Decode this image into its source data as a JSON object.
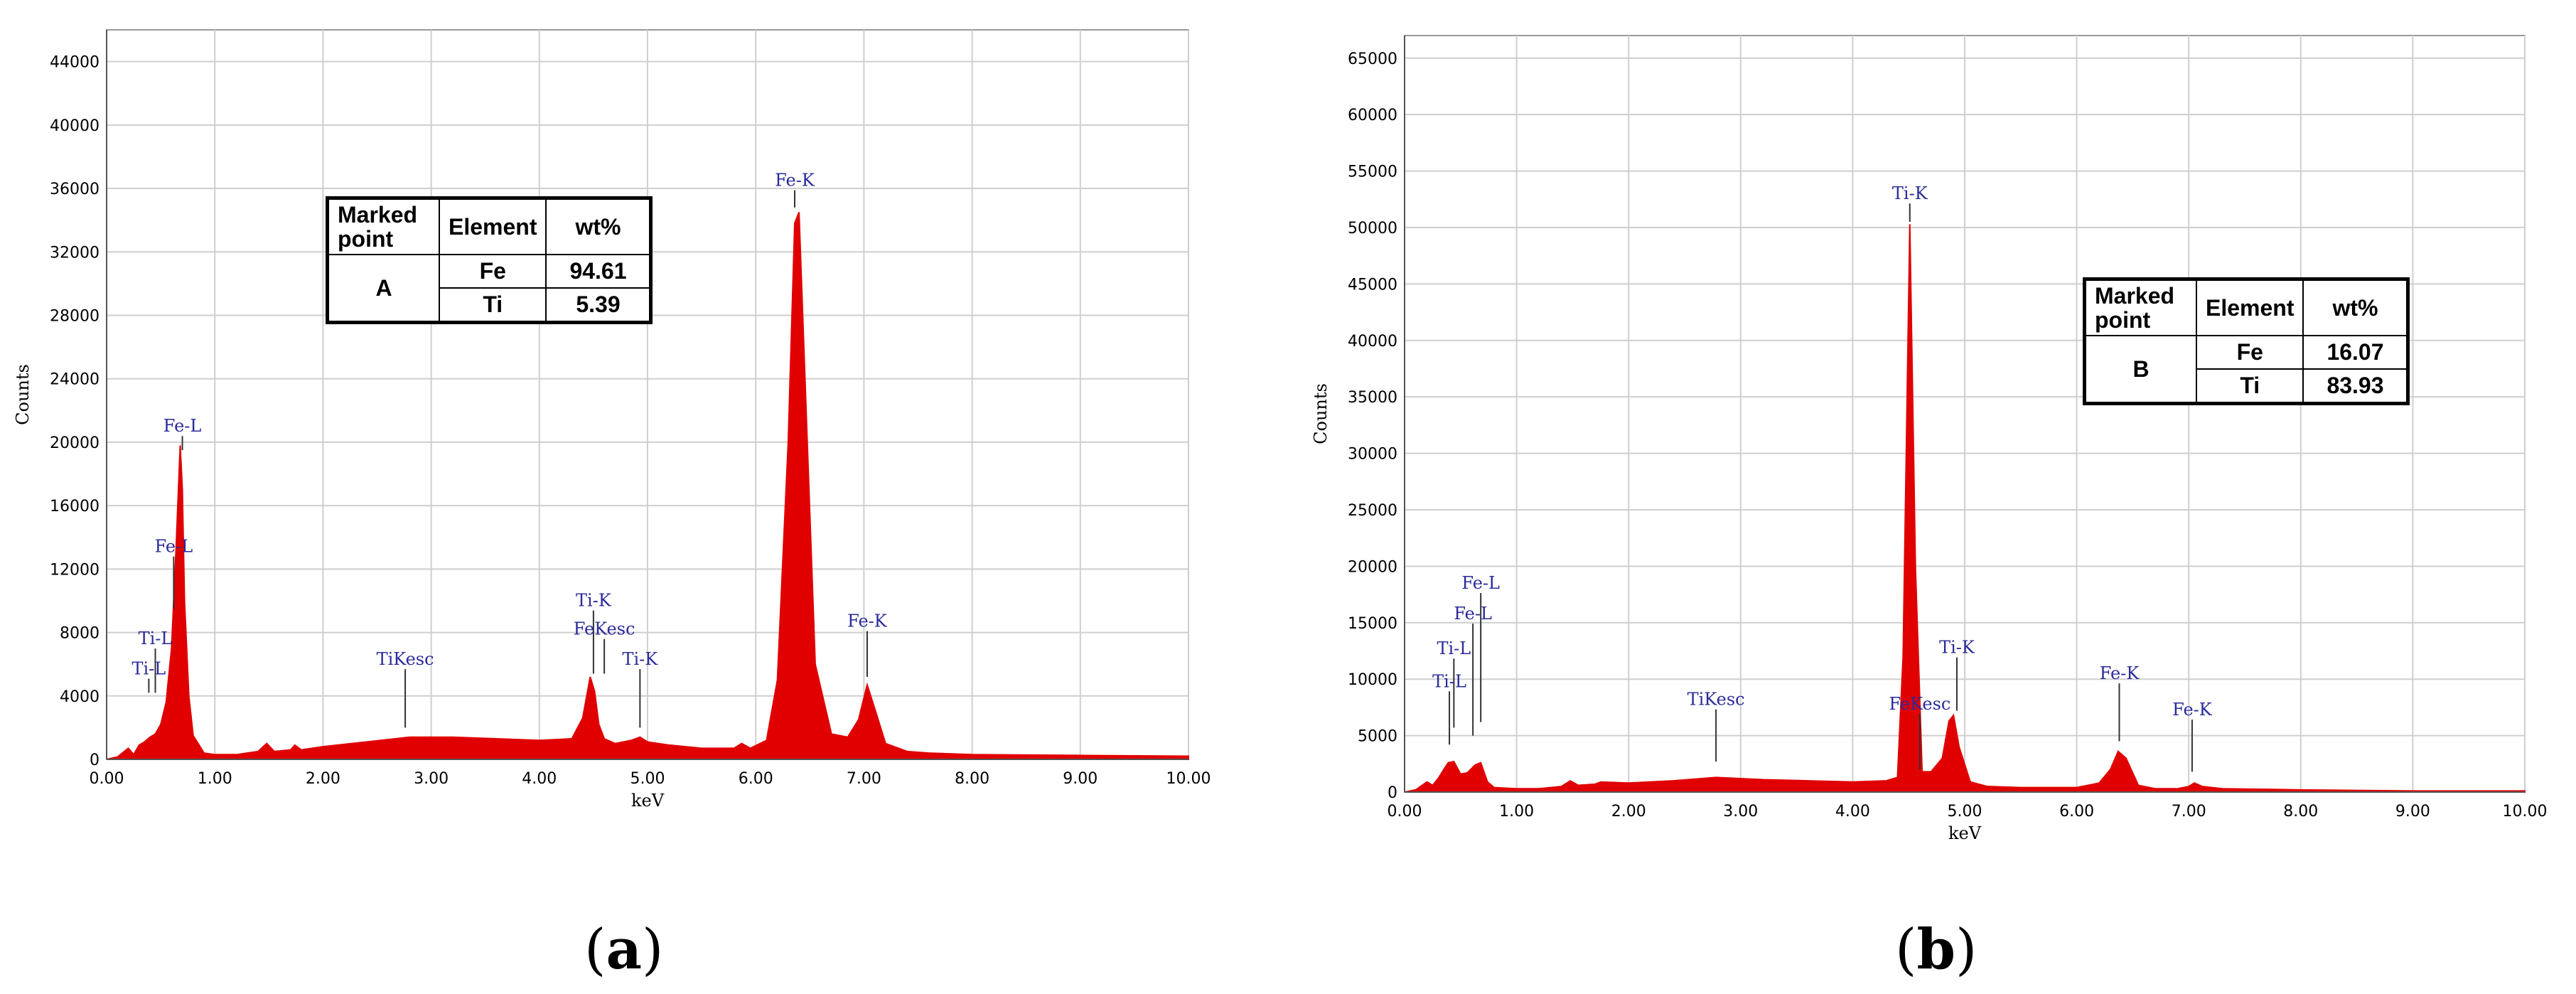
{
  "chart_data": [
    {
      "type": "area",
      "panel_label": "a",
      "xlabel": "keV",
      "ylabel": "Counts",
      "xlim": [
        0,
        10
      ],
      "ylim": [
        0,
        46000
      ],
      "x_ticks": [
        "0.00",
        "1.00",
        "2.00",
        "3.00",
        "4.00",
        "5.00",
        "6.00",
        "7.00",
        "8.00",
        "9.00",
        "10.00"
      ],
      "y_ticks": [
        "0",
        "4000",
        "8000",
        "12000",
        "16000",
        "20000",
        "24000",
        "28000",
        "32000",
        "36000",
        "40000",
        "44000"
      ],
      "grid": true,
      "series_color": "#e00000",
      "label_color": "#2a2a9a",
      "spectrum": {
        "x": [
          0.0,
          0.1,
          0.2,
          0.25,
          0.3,
          0.35,
          0.4,
          0.45,
          0.5,
          0.55,
          0.6,
          0.64,
          0.68,
          0.7,
          0.72,
          0.76,
          0.8,
          0.9,
          1.0,
          1.2,
          1.4,
          1.48,
          1.55,
          1.7,
          1.74,
          1.8,
          2.0,
          2.4,
          2.8,
          3.2,
          3.6,
          4.0,
          4.3,
          4.4,
          4.47,
          4.51,
          4.55,
          4.6,
          4.7,
          4.85,
          4.93,
          5.0,
          5.2,
          5.5,
          5.8,
          5.87,
          5.95,
          6.1,
          6.2,
          6.3,
          6.36,
          6.4,
          6.45,
          6.55,
          6.7,
          6.85,
          6.95,
          7.03,
          7.1,
          7.2,
          7.4,
          7.6,
          8.0,
          9.0,
          10.0
        ],
        "y": [
          0,
          150,
          700,
          300,
          900,
          1100,
          1400,
          1600,
          2200,
          3600,
          7000,
          13000,
          19800,
          17000,
          10000,
          4000,
          1500,
          400,
          300,
          300,
          500,
          1000,
          500,
          600,
          900,
          600,
          800,
          1100,
          1400,
          1400,
          1300,
          1200,
          1300,
          2600,
          5200,
          4300,
          2200,
          1300,
          1000,
          1200,
          1400,
          1100,
          900,
          700,
          700,
          1000,
          700,
          1200,
          5000,
          20000,
          33800,
          34500,
          25000,
          6000,
          1600,
          1400,
          2500,
          4700,
          3200,
          1000,
          500,
          400,
          300,
          250,
          200
        ]
      },
      "peak_labels": [
        {
          "text": "Fe-L",
          "x": 0.7,
          "y": 19500,
          "label_y": 20300
        },
        {
          "text": "Fe-L",
          "x": 0.62,
          "y": 9500,
          "label_y": 12700
        },
        {
          "text": "Ti-L",
          "x": 0.45,
          "y": 4200,
          "label_y": 6900
        },
        {
          "text": "Ti-L",
          "x": 0.39,
          "y": 4200,
          "label_y": 5000
        },
        {
          "text": "TiKesc",
          "x": 2.76,
          "y": 2000,
          "label_y": 5600
        },
        {
          "text": "Ti-K",
          "x": 4.5,
          "y": 5400,
          "label_y": 9300
        },
        {
          "text": "FeKesc",
          "x": 4.6,
          "y": 5400,
          "label_y": 7500
        },
        {
          "text": "Ti-K",
          "x": 4.93,
          "y": 2000,
          "label_y": 5600
        },
        {
          "text": "Fe-K",
          "x": 6.36,
          "y": 34800,
          "label_y": 35800
        },
        {
          "text": "Fe-K",
          "x": 7.03,
          "y": 5200,
          "label_y": 8000
        }
      ],
      "table": {
        "headers": [
          "Marked point",
          "Element",
          "wt%"
        ],
        "marked_point": "A",
        "rows": [
          {
            "element": "Fe",
            "wt": "94.61"
          },
          {
            "element": "Ti",
            "wt": "5.39"
          }
        ]
      }
    },
    {
      "type": "area",
      "panel_label": "b",
      "xlabel": "keV",
      "ylabel": "Counts",
      "xlim": [
        0,
        10
      ],
      "ylim": [
        0,
        67000
      ],
      "x_ticks": [
        "0.00",
        "1.00",
        "2.00",
        "3.00",
        "4.00",
        "5.00",
        "6.00",
        "7.00",
        "8.00",
        "9.00",
        "10.00"
      ],
      "y_ticks": [
        "0",
        "5000",
        "10000",
        "15000",
        "20000",
        "25000",
        "30000",
        "35000",
        "40000",
        "45000",
        "50000",
        "55000",
        "60000",
        "65000"
      ],
      "grid": true,
      "series_color": "#e00000",
      "label_color": "#2a2a9a",
      "spectrum": {
        "x": [
          0.0,
          0.1,
          0.2,
          0.25,
          0.3,
          0.35,
          0.39,
          0.44,
          0.5,
          0.56,
          0.63,
          0.68,
          0.74,
          0.8,
          1.0,
          1.2,
          1.4,
          1.48,
          1.55,
          1.7,
          1.75,
          2.0,
          2.4,
          2.78,
          3.2,
          3.6,
          4.0,
          4.3,
          4.4,
          4.45,
          4.51,
          4.56,
          4.62,
          4.7,
          4.8,
          4.86,
          4.9,
          4.95,
          5.05,
          5.2,
          5.5,
          6.0,
          6.2,
          6.3,
          6.37,
          6.44,
          6.55,
          6.7,
          6.9,
          7.0,
          7.05,
          7.12,
          7.3,
          8.0,
          9.0,
          10.0
        ],
        "y": [
          0,
          200,
          900,
          600,
          1200,
          2000,
          2600,
          2700,
          1600,
          1700,
          2400,
          2600,
          900,
          400,
          300,
          300,
          500,
          1000,
          600,
          700,
          900,
          800,
          1000,
          1300,
          1100,
          1000,
          900,
          1000,
          1300,
          12000,
          50300,
          20000,
          1800,
          1800,
          3000,
          6300,
          6800,
          4000,
          900,
          500,
          400,
          400,
          800,
          2000,
          3600,
          3000,
          600,
          300,
          300,
          500,
          800,
          500,
          300,
          200,
          100,
          100
        ]
      },
      "peak_labels": [
        {
          "text": "Fe-L",
          "x": 0.68,
          "y": 6200,
          "label_y": 17500
        },
        {
          "text": "Fe-L",
          "x": 0.61,
          "y": 5000,
          "label_y": 14800
        },
        {
          "text": "Ti-L",
          "x": 0.44,
          "y": 5700,
          "label_y": 11700
        },
        {
          "text": "Ti-L",
          "x": 0.4,
          "y": 4200,
          "label_y": 8800
        },
        {
          "text": "TiKesc",
          "x": 2.78,
          "y": 2700,
          "label_y": 7200
        },
        {
          "text": "Ti-K",
          "x": 4.51,
          "y": 50500,
          "label_y": 52000
        },
        {
          "text": "FeKesc",
          "x": 4.6,
          "y": 2000,
          "label_y": 6800
        },
        {
          "text": "Ti-K",
          "x": 4.93,
          "y": 7200,
          "label_y": 11800
        },
        {
          "text": "Fe-K",
          "x": 6.38,
          "y": 4500,
          "label_y": 9500
        },
        {
          "text": "Fe-K",
          "x": 7.03,
          "y": 1800,
          "label_y": 6300
        }
      ],
      "table": {
        "headers": [
          "Marked point",
          "Element",
          "wt%"
        ],
        "marked_point": "B",
        "rows": [
          {
            "element": "Fe",
            "wt": "16.07"
          },
          {
            "element": "Ti",
            "wt": "83.93"
          }
        ]
      }
    }
  ]
}
